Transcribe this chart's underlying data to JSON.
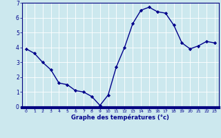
{
  "hours": [
    0,
    1,
    2,
    3,
    4,
    5,
    6,
    7,
    8,
    9,
    10,
    11,
    12,
    13,
    14,
    15,
    16,
    17,
    18,
    19,
    20,
    21,
    22,
    23
  ],
  "temps": [
    3.9,
    3.6,
    3.0,
    2.5,
    1.6,
    1.5,
    1.1,
    1.0,
    0.7,
    0.1,
    0.8,
    2.7,
    4.0,
    5.6,
    6.5,
    6.7,
    6.4,
    6.3,
    5.5,
    4.3,
    3.9,
    4.1,
    4.4,
    4.3
  ],
  "xlabel": "Graphe des températures (°c)",
  "line_color": "#00008b",
  "bg_color": "#cce8ee",
  "grid_color": "#b0d8e0",
  "bottom_bar_color": "#000080",
  "ylim": [
    -0.05,
    7.0
  ],
  "xlim": [
    -0.5,
    23.5
  ],
  "yticks": [
    0,
    1,
    2,
    3,
    4,
    5,
    6,
    7
  ],
  "xticks": [
    0,
    1,
    2,
    3,
    4,
    5,
    6,
    7,
    8,
    9,
    10,
    11,
    12,
    13,
    14,
    15,
    16,
    17,
    18,
    19,
    20,
    21,
    22,
    23
  ]
}
